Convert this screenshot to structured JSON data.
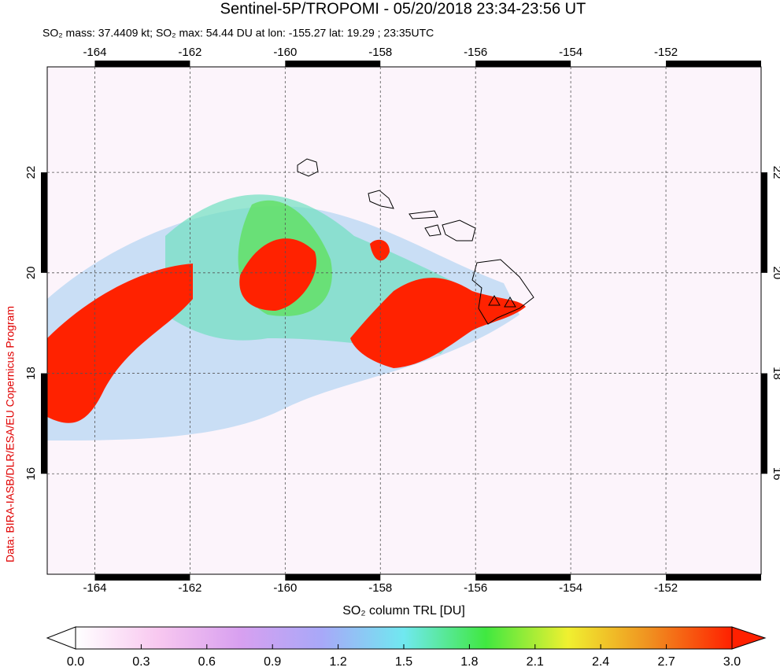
{
  "chart_data": {
    "type": "map",
    "title": "Sentinel-5P/TROPOMI - 05/20/2018 23:34-23:56 UT",
    "subtitle": "SO₂ mass: 37.4409 kt; SO₂ max: 54.44 DU at lon: -155.27 lat: 19.29 ; 23:35UTC",
    "credit": "Data: BIRA-IASB/DLR/ESA/EU Copernicus Program",
    "xlim": [
      -165,
      -150
    ],
    "ylim": [
      14,
      24.1
    ],
    "xticks": [
      -164,
      -162,
      -160,
      -158,
      -156,
      -154,
      -152
    ],
    "yticks": [
      16,
      18,
      20,
      22
    ],
    "grid": true,
    "colorbar": {
      "label": "SO₂ column TRL [DU]",
      "lim": [
        0,
        3
      ],
      "ticks": [
        {
          "value": 0,
          "label": "0.0"
        },
        {
          "value": 0.3,
          "label": "0.3"
        },
        {
          "value": 0.6,
          "label": "0.6"
        },
        {
          "value": 0.9,
          "label": "0.9"
        },
        {
          "value": 1.2,
          "label": "1.2"
        },
        {
          "value": 1.5,
          "label": "1.5"
        },
        {
          "value": 1.8,
          "label": "1.8"
        },
        {
          "value": 2.1,
          "label": "2.1"
        },
        {
          "value": 2.4,
          "label": "2.4"
        },
        {
          "value": 2.7,
          "label": "2.7"
        },
        {
          "value": 3,
          "label": "3.0"
        }
      ],
      "colors": [
        "#ffffff",
        "#f8c8f0",
        "#d8a0f0",
        "#a8a8f8",
        "#70e8f0",
        "#40e840",
        "#f0f030",
        "#f09020",
        "#ff2000"
      ]
    }
  }
}
